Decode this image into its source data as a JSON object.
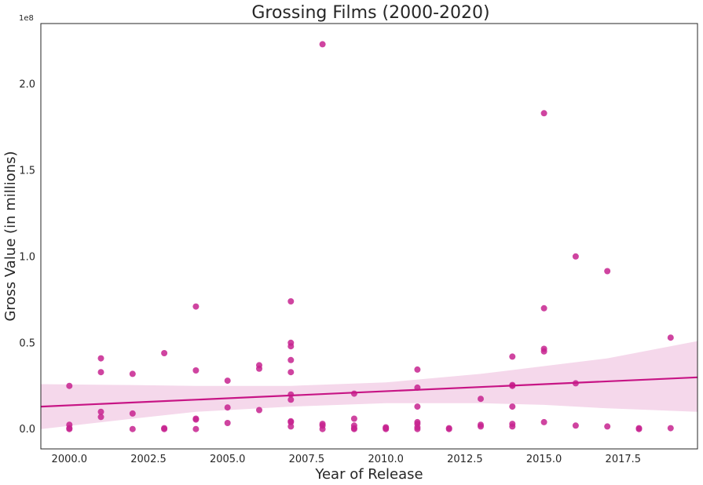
{
  "chart_data": {
    "type": "scatter",
    "title": "Grossing Films (2000-2020)",
    "xlabel": "Year of Release",
    "ylabel": "Gross Value (in millions)",
    "y_offset_label": "1e8",
    "xlim": [
      1999.1,
      2019.85
    ],
    "ylim": [
      -0.115,
      2.35
    ],
    "x_ticks": [
      2000.0,
      2002.5,
      2005.0,
      2007.5,
      2010.0,
      2012.5,
      2015.0,
      2017.5
    ],
    "x_tick_labels": [
      "2000.0",
      "2002.5",
      "2005.0",
      "2007.5",
      "2010.0",
      "2012.5",
      "2015.0",
      "2017.5"
    ],
    "y_ticks": [
      0.0,
      0.5,
      1.0,
      1.5,
      2.0
    ],
    "y_tick_labels": [
      "0.0",
      "0.5",
      "1.0",
      "1.5",
      "2.0"
    ],
    "grid": false,
    "points": [
      {
        "x": 2000,
        "y": 0.25
      },
      {
        "x": 2000,
        "y": 0.025
      },
      {
        "x": 2000,
        "y": 0.005
      },
      {
        "x": 2000,
        "y": 0.0
      },
      {
        "x": 2001,
        "y": 0.41
      },
      {
        "x": 2001,
        "y": 0.33
      },
      {
        "x": 2001,
        "y": 0.1
      },
      {
        "x": 2001,
        "y": 0.07
      },
      {
        "x": 2002,
        "y": 0.32
      },
      {
        "x": 2002,
        "y": 0.09
      },
      {
        "x": 2002,
        "y": 0.0
      },
      {
        "x": 2003,
        "y": 0.44
      },
      {
        "x": 2003,
        "y": 0.005
      },
      {
        "x": 2003,
        "y": 0.0
      },
      {
        "x": 2004,
        "y": 0.71
      },
      {
        "x": 2004,
        "y": 0.34
      },
      {
        "x": 2004,
        "y": 0.06
      },
      {
        "x": 2004,
        "y": 0.055
      },
      {
        "x": 2004,
        "y": 0.0
      },
      {
        "x": 2005,
        "y": 0.28
      },
      {
        "x": 2005,
        "y": 0.125
      },
      {
        "x": 2005,
        "y": 0.035
      },
      {
        "x": 2006,
        "y": 0.37
      },
      {
        "x": 2006,
        "y": 0.35
      },
      {
        "x": 2006,
        "y": 0.11
      },
      {
        "x": 2007,
        "y": 0.74
      },
      {
        "x": 2007,
        "y": 0.5
      },
      {
        "x": 2007,
        "y": 0.48
      },
      {
        "x": 2007,
        "y": 0.4
      },
      {
        "x": 2007,
        "y": 0.33
      },
      {
        "x": 2007,
        "y": 0.2
      },
      {
        "x": 2007,
        "y": 0.17
      },
      {
        "x": 2007,
        "y": 0.045
      },
      {
        "x": 2007,
        "y": 0.04
      },
      {
        "x": 2007,
        "y": 0.015
      },
      {
        "x": 2008,
        "y": 2.23
      },
      {
        "x": 2008,
        "y": 0.03
      },
      {
        "x": 2008,
        "y": 0.02
      },
      {
        "x": 2008,
        "y": 0.0
      },
      {
        "x": 2009,
        "y": 0.205
      },
      {
        "x": 2009,
        "y": 0.06
      },
      {
        "x": 2009,
        "y": 0.02
      },
      {
        "x": 2009,
        "y": 0.005
      },
      {
        "x": 2009,
        "y": 0.0
      },
      {
        "x": 2010,
        "y": 0.01
      },
      {
        "x": 2010,
        "y": 0.005
      },
      {
        "x": 2010,
        "y": 0.0
      },
      {
        "x": 2011,
        "y": 0.345
      },
      {
        "x": 2011,
        "y": 0.24
      },
      {
        "x": 2011,
        "y": 0.13
      },
      {
        "x": 2011,
        "y": 0.04
      },
      {
        "x": 2011,
        "y": 0.03
      },
      {
        "x": 2011,
        "y": 0.01
      },
      {
        "x": 2011,
        "y": 0.0
      },
      {
        "x": 2012,
        "y": 0.005
      },
      {
        "x": 2012,
        "y": 0.0
      },
      {
        "x": 2013,
        "y": 0.175
      },
      {
        "x": 2013,
        "y": 0.025
      },
      {
        "x": 2013,
        "y": 0.015
      },
      {
        "x": 2014,
        "y": 0.42
      },
      {
        "x": 2014,
        "y": 0.255
      },
      {
        "x": 2014,
        "y": 0.25
      },
      {
        "x": 2014,
        "y": 0.13
      },
      {
        "x": 2014,
        "y": 0.03
      },
      {
        "x": 2014,
        "y": 0.015
      },
      {
        "x": 2015,
        "y": 1.83
      },
      {
        "x": 2015,
        "y": 0.7
      },
      {
        "x": 2015,
        "y": 0.465
      },
      {
        "x": 2015,
        "y": 0.45
      },
      {
        "x": 2015,
        "y": 0.04
      },
      {
        "x": 2016,
        "y": 1.0
      },
      {
        "x": 2016,
        "y": 0.265
      },
      {
        "x": 2016,
        "y": 0.02
      },
      {
        "x": 2017,
        "y": 0.915
      },
      {
        "x": 2017,
        "y": 0.015
      },
      {
        "x": 2018,
        "y": 0.005
      },
      {
        "x": 2018,
        "y": 0.0
      },
      {
        "x": 2019,
        "y": 0.53
      },
      {
        "x": 2019,
        "y": 0.005
      }
    ],
    "regression": {
      "x": [
        1999.1,
        2019.85
      ],
      "y": [
        0.13,
        0.3
      ]
    },
    "confidence_band": {
      "x": [
        1999.1,
        2002,
        2004,
        2007,
        2010,
        2013,
        2015,
        2017,
        2019.85
      ],
      "upper": [
        0.26,
        0.255,
        0.25,
        0.25,
        0.27,
        0.32,
        0.365,
        0.41,
        0.51
      ],
      "lower": [
        0.0,
        0.06,
        0.1,
        0.13,
        0.15,
        0.15,
        0.14,
        0.12,
        0.1
      ]
    },
    "colors": {
      "points": "#c7238f",
      "regression_line": "#c71585",
      "confidence_band": "#f5d8eb",
      "axes": "#262626"
    }
  }
}
